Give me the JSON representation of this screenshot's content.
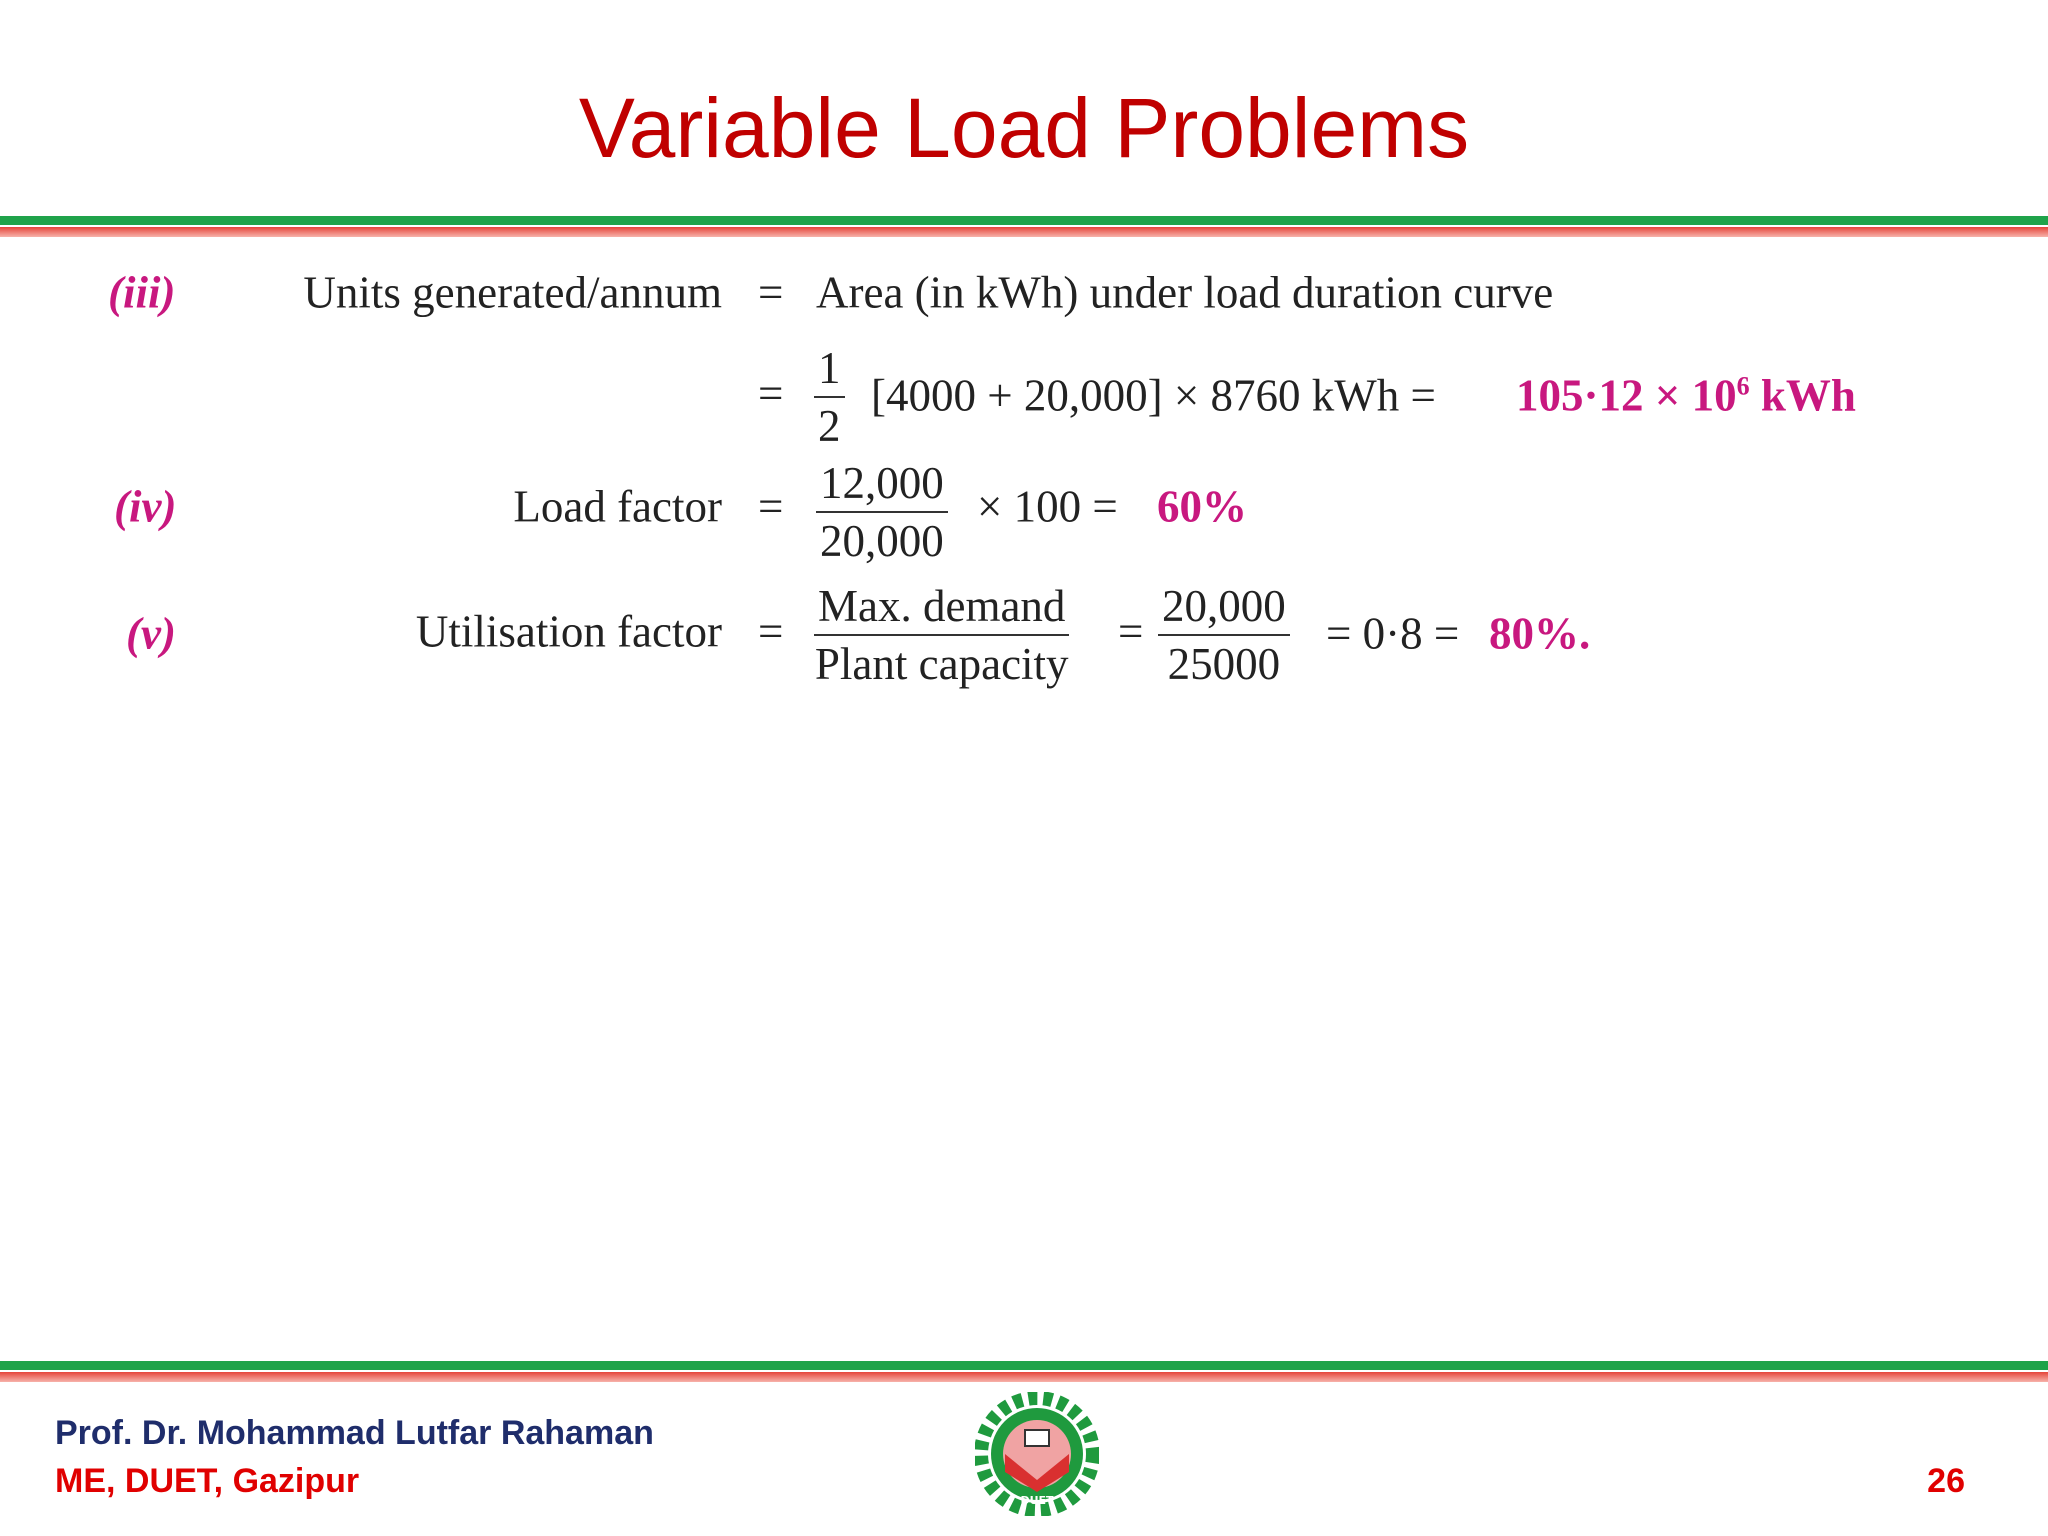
{
  "title": "Variable Load Problems",
  "items": [
    {
      "label": "(iii)",
      "quantity": "Units generated/annum",
      "eq": "=",
      "text": "Area (in kWh) under load duration curve",
      "eq2": "=",
      "frac_num": "1",
      "frac_den": "2",
      "expr": "[4000 + 20,000] × 8760 kWh =",
      "answer": "105·12 × 10",
      "answer_exp": "6",
      "answer_unit": "kWh"
    },
    {
      "label": "(iv)",
      "quantity": "Load factor",
      "eq": "=",
      "frac_num": "12,000",
      "frac_den": "20,000",
      "expr": "× 100 =",
      "answer": "60%"
    },
    {
      "label": "(v)",
      "quantity": "Utilisation factor",
      "eq": "=",
      "frac_num": "Max. demand",
      "frac_den": "Plant capacity",
      "eq_mid": "=",
      "frac2_num": "20,000",
      "frac2_den": "25000",
      "expr": "= 0·8 =",
      "answer": "80%."
    }
  ],
  "footer": {
    "author": "Prof. Dr. Mohammad Lutfar Rahaman",
    "affiliation": "ME, DUET, Gazipur",
    "page": "26",
    "logo_text": "DUET"
  }
}
